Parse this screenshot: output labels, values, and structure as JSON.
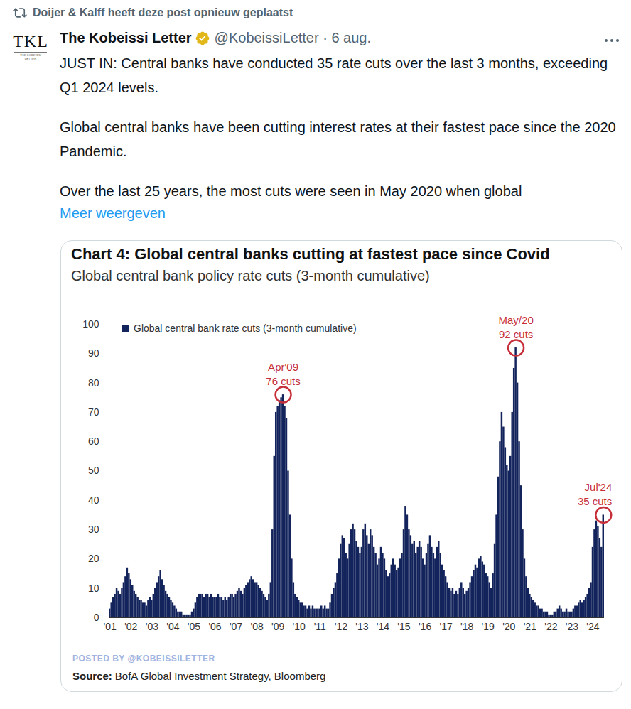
{
  "post": {
    "repost": "Doijer & Kalff heeft deze post opnieuw geplaatst",
    "avatar": "TKL",
    "avatar_caption": "THE KOBEISSI LETTER",
    "name": "The Kobeissi Letter",
    "handle": "@KobeissiLetter · 6 aug.",
    "paragraphs": [
      "JUST IN: Central banks have conducted 35 rate cuts over the last 3 months, exceeding Q1 2024 levels.",
      "Global central banks have been cutting interest rates at their fastest pace since the 2020 Pandemic.",
      "Over the last 25 years, the most cuts were seen in May 2020 when global"
    ],
    "more": "Meer weergeven"
  },
  "chart_data": {
    "type": "bar",
    "title": "Chart 4: Global central banks cutting at fastest pace since Covid",
    "subtitle": "Global central bank policy rate cuts (3-month cumulative)",
    "watermark": "POSTED BY @KOBEISSILETTER",
    "source_label": "Source:",
    "source": "BofA Global Investment Strategy, Bloomberg",
    "legend": "top-left",
    "grid": false,
    "ylim": [
      0,
      100
    ],
    "yticks": [
      0,
      10,
      20,
      30,
      40,
      50,
      60,
      70,
      80,
      90,
      100
    ],
    "categories": [
      "'01",
      null,
      null,
      null,
      null,
      null,
      null,
      null,
      null,
      null,
      null,
      null,
      "'02",
      null,
      null,
      null,
      null,
      null,
      null,
      null,
      null,
      null,
      null,
      null,
      "'03",
      null,
      null,
      null,
      null,
      null,
      null,
      null,
      null,
      null,
      null,
      null,
      "'04",
      null,
      null,
      null,
      null,
      null,
      null,
      null,
      null,
      null,
      null,
      null,
      "'05",
      null,
      null,
      null,
      null,
      null,
      null,
      null,
      null,
      null,
      null,
      null,
      "'06",
      null,
      null,
      null,
      null,
      null,
      null,
      null,
      null,
      null,
      null,
      null,
      "'07",
      null,
      null,
      null,
      null,
      null,
      null,
      null,
      null,
      null,
      null,
      null,
      "'08",
      null,
      null,
      null,
      null,
      null,
      null,
      null,
      null,
      null,
      null,
      null,
      "'09",
      null,
      null,
      null,
      null,
      null,
      null,
      null,
      null,
      null,
      null,
      null,
      "'10",
      null,
      null,
      null,
      null,
      null,
      null,
      null,
      null,
      null,
      null,
      null,
      "'11",
      null,
      null,
      null,
      null,
      null,
      null,
      null,
      null,
      null,
      null,
      null,
      "'12",
      null,
      null,
      null,
      null,
      null,
      null,
      null,
      null,
      null,
      null,
      null,
      "'13",
      null,
      null,
      null,
      null,
      null,
      null,
      null,
      null,
      null,
      null,
      null,
      "'14",
      null,
      null,
      null,
      null,
      null,
      null,
      null,
      null,
      null,
      null,
      null,
      "'15",
      null,
      null,
      null,
      null,
      null,
      null,
      null,
      null,
      null,
      null,
      null,
      "'16",
      null,
      null,
      null,
      null,
      null,
      null,
      null,
      null,
      null,
      null,
      null,
      "'17",
      null,
      null,
      null,
      null,
      null,
      null,
      null,
      null,
      null,
      null,
      null,
      "'18",
      null,
      null,
      null,
      null,
      null,
      null,
      null,
      null,
      null,
      null,
      null,
      "'19",
      null,
      null,
      null,
      null,
      null,
      null,
      null,
      null,
      null,
      null,
      null,
      "'20",
      null,
      null,
      null,
      null,
      null,
      null,
      null,
      null,
      null,
      null,
      null,
      "'21",
      null,
      null,
      null,
      null,
      null,
      null,
      null,
      null,
      null,
      null,
      null,
      "'22",
      null,
      null,
      null,
      null,
      null,
      null,
      null,
      null,
      null,
      null,
      null,
      "'23",
      null,
      null,
      null,
      null,
      null,
      null,
      null,
      null,
      null,
      null,
      null,
      "'24",
      null,
      null,
      null,
      null,
      null,
      null
    ],
    "series": [
      {
        "name": "Global central bank rate cuts (3-month cumulative)",
        "color": "#13235b",
        "values": [
          3,
          5,
          7,
          8,
          10,
          9,
          8,
          10,
          12,
          14,
          17,
          15,
          13,
          11,
          9,
          8,
          7,
          6,
          6,
          5,
          5,
          4,
          6,
          7,
          6,
          8,
          10,
          12,
          14,
          16,
          13,
          11,
          9,
          8,
          7,
          6,
          5,
          4,
          3,
          2,
          2,
          2,
          1,
          1,
          1,
          1,
          1,
          2,
          3,
          5,
          7,
          8,
          8,
          8,
          7,
          8,
          8,
          7,
          8,
          7,
          7,
          7,
          8,
          7,
          7,
          6,
          7,
          6,
          7,
          8,
          8,
          7,
          8,
          9,
          10,
          9,
          8,
          10,
          11,
          12,
          13,
          14,
          13,
          12,
          12,
          11,
          10,
          9,
          8,
          7,
          6,
          8,
          12,
          30,
          55,
          70,
          72,
          74,
          75,
          76,
          72,
          68,
          50,
          35,
          20,
          12,
          8,
          7,
          6,
          5,
          5,
          4,
          4,
          3,
          4,
          3,
          4,
          3,
          3,
          3,
          3,
          4,
          3,
          4,
          3,
          3,
          5,
          8,
          10,
          12,
          15,
          20,
          25,
          28,
          27,
          22,
          20,
          25,
          30,
          32,
          30,
          26,
          24,
          22,
          24,
          30,
          32,
          28,
          25,
          30,
          28,
          24,
          22,
          18,
          20,
          24,
          22,
          20,
          16,
          14,
          15,
          18,
          20,
          18,
          16,
          17,
          20,
          22,
          30,
          38,
          35,
          30,
          28,
          25,
          26,
          22,
          24,
          26,
          24,
          20,
          18,
          22,
          25,
          28,
          24,
          22,
          20,
          24,
          26,
          22,
          18,
          16,
          14,
          12,
          10,
          9,
          10,
          8,
          9,
          8,
          10,
          12,
          10,
          8,
          9,
          10,
          12,
          14,
          16,
          18,
          17,
          20,
          21,
          19,
          18,
          15,
          14,
          12,
          10,
          15,
          25,
          35,
          48,
          60,
          70,
          65,
          58,
          52,
          50,
          55,
          70,
          85,
          92,
          80,
          60,
          45,
          30,
          20,
          14,
          10,
          8,
          7,
          6,
          5,
          4,
          4,
          3,
          3,
          2,
          2,
          2,
          1,
          1,
          1,
          2,
          2,
          3,
          4,
          3,
          2,
          2,
          3,
          2,
          2,
          2,
          3,
          4,
          4,
          5,
          6,
          5,
          6,
          7,
          8,
          10,
          12,
          24,
          30,
          33,
          31,
          27,
          24,
          35
        ]
      }
    ],
    "annotations": [
      {
        "index": 99,
        "label": "Apr'09",
        "text": "76 cuts",
        "value": 76
      },
      {
        "index": 232,
        "label": "May/20",
        "text": "92 cuts",
        "value": 92
      },
      {
        "index": 282,
        "label": "Jul'24",
        "text": "35 cuts",
        "value": 35
      }
    ]
  }
}
